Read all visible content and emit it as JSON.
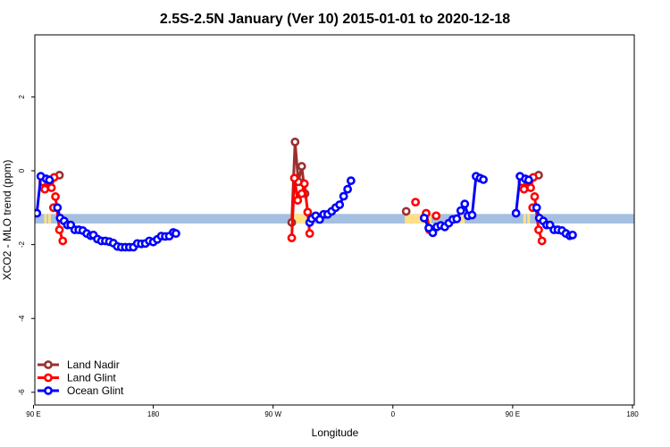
{
  "chart_data": {
    "type": "line",
    "title": "2.5S-2.5N January (Ver 10)   2015-01-01 to 2020-12-18",
    "xlabel": "Longitude",
    "ylabel": "XCO2 - MLO trend (ppm)",
    "xlim": [
      90,
      450
    ],
    "ylim": [
      -6.2,
      3.7
    ],
    "xticks": [
      {
        "v": 90,
        "label": "90 E"
      },
      {
        "v": 180,
        "label": "180"
      },
      {
        "v": 270,
        "label": "90 W"
      },
      {
        "v": 360,
        "label": "0"
      },
      {
        "v": 450,
        "label": "90 E"
      },
      {
        "v": 540,
        "label": "180"
      }
    ],
    "yticks": [
      {
        "v": -6,
        "label": "-6"
      },
      {
        "v": -4,
        "label": "-4"
      },
      {
        "v": -2,
        "label": "-2"
      },
      {
        "v": 0,
        "label": "0"
      },
      {
        "v": 2,
        "label": "2"
      }
    ],
    "band": {
      "y0": -1.43,
      "y1": -1.17,
      "color": "#a5bfe0"
    },
    "land_segments": [
      {
        "x0": 98,
        "x1": 100
      },
      {
        "x0": 101,
        "x1": 103
      },
      {
        "x0": 110,
        "x1": 113
      },
      {
        "x0": 283,
        "x1": 296
      },
      {
        "x0": 369,
        "x1": 389
      },
      {
        "x0": 410,
        "x1": 414
      },
      {
        "x0": 458,
        "x1": 460
      },
      {
        "x0": 461,
        "x1": 463
      },
      {
        "x0": 470,
        "x1": 473
      }
    ],
    "land_color": "#ffe08a",
    "legend_position": "bottom-left",
    "series": [
      {
        "name": "Land Nadir",
        "color": "#9b3030",
        "segments": [
          [
            [
              109.5,
              -0.12
            ]
          ],
          [
            [
              284,
              -1.4
            ],
            [
              286.5,
              0.78
            ],
            [
              289,
              -0.3
            ],
            [
              291.5,
              0.12
            ],
            [
              294,
              -0.62
            ]
          ],
          [
            [
              370,
              -1.1
            ]
          ],
          [
            [
              469.5,
              -0.12
            ]
          ]
        ]
      },
      {
        "name": "Land Glint",
        "color": "#ff0000",
        "segments": [
          [
            [
              97,
              -0.3
            ],
            [
              98.5,
              -0.5
            ],
            [
              101.5,
              -0.3
            ],
            [
              103.5,
              -0.46
            ],
            [
              105.5,
              -0.18
            ]
          ],
          [
            [
              105,
              -1.0
            ]
          ],
          [
            [
              106.5,
              -0.7
            ],
            [
              109.5,
              -1.6
            ],
            [
              112,
              -1.9
            ]
          ],
          [
            [
              284,
              -1.82
            ],
            [
              286,
              -0.2
            ],
            [
              288.5,
              -0.8
            ],
            [
              291.5,
              -0.62
            ],
            [
              293.5,
              -0.35
            ],
            [
              296,
              -1.12
            ],
            [
              297.5,
              -1.7
            ]
          ],
          [
            [
              377,
              -0.85
            ]
          ],
          [
            [
              385,
              -1.15
            ],
            [
              387.5,
              -1.6
            ]
          ],
          [
            [
              392.5,
              -1.22
            ]
          ],
          [
            [
              457,
              -0.3
            ],
            [
              458.5,
              -0.5
            ],
            [
              461.5,
              -0.3
            ],
            [
              463.5,
              -0.46
            ],
            [
              465.5,
              -0.18
            ]
          ],
          [
            [
              465,
              -1.0
            ]
          ],
          [
            [
              466.5,
              -0.7
            ],
            [
              469.5,
              -1.6
            ],
            [
              472,
              -1.9
            ]
          ]
        ]
      },
      {
        "name": "Ocean Glint",
        "color": "#0000ff",
        "segments": [
          [
            [
              92.5,
              -1.15
            ],
            [
              95.5,
              -0.15
            ],
            [
              99.5,
              -0.22
            ],
            [
              102,
              -0.25
            ]
          ],
          [
            [
              108,
              -1.0
            ],
            [
              110,
              -1.28
            ],
            [
              113,
              -1.36
            ],
            [
              115.5,
              -1.47
            ],
            [
              118,
              -1.47
            ],
            [
              121,
              -1.6
            ],
            [
              124,
              -1.6
            ],
            [
              127,
              -1.62
            ],
            [
              130,
              -1.7
            ],
            [
              133,
              -1.76
            ],
            [
              135,
              -1.74
            ],
            [
              138,
              -1.85
            ],
            [
              141,
              -1.9
            ],
            [
              144,
              -1.9
            ],
            [
              147,
              -1.92
            ],
            [
              150,
              -1.96
            ],
            [
              153,
              -2.05
            ],
            [
              156,
              -2.07
            ],
            [
              159,
              -2.07
            ],
            [
              162,
              -2.07
            ],
            [
              165,
              -2.07
            ],
            [
              168,
              -1.97
            ],
            [
              171,
              -1.98
            ],
            [
              174,
              -1.97
            ],
            [
              177,
              -1.9
            ],
            [
              180,
              -1.93
            ],
            [
              183,
              -1.86
            ],
            [
              186,
              -1.77
            ],
            [
              189,
              -1.78
            ],
            [
              192,
              -1.77
            ],
            [
              195,
              -1.67
            ],
            [
              197,
              -1.7
            ]
          ],
          [
            [
              297.5,
              -1.4
            ],
            [
              299,
              -1.3
            ],
            [
              302,
              -1.22
            ],
            [
              305,
              -1.32
            ],
            [
              308,
              -1.18
            ],
            [
              311,
              -1.18
            ],
            [
              314,
              -1.1
            ],
            [
              317,
              -1.0
            ],
            [
              320,
              -0.92
            ],
            [
              323,
              -0.69
            ],
            [
              326,
              -0.5
            ],
            [
              328.5,
              -0.27
            ]
          ],
          [
            [
              383.5,
              -1.28
            ],
            [
              387,
              -1.55
            ],
            [
              390,
              -1.68
            ],
            [
              393,
              -1.52
            ],
            [
              396,
              -1.48
            ],
            [
              399,
              -1.52
            ],
            [
              402,
              -1.42
            ],
            [
              405,
              -1.32
            ],
            [
              408,
              -1.3
            ],
            [
              411,
              -1.08
            ],
            [
              414,
              -0.9
            ],
            [
              416.5,
              -1.22
            ],
            [
              419.5,
              -1.2
            ],
            [
              422.5,
              -0.15
            ],
            [
              425.5,
              -0.2
            ],
            [
              428,
              -0.24
            ]
          ],
          [
            [
              452.5,
              -1.15
            ],
            [
              455.5,
              -0.15
            ],
            [
              459.5,
              -0.22
            ],
            [
              462,
              -0.25
            ]
          ],
          [
            [
              468,
              -1.0
            ],
            [
              470,
              -1.28
            ],
            [
              473,
              -1.36
            ],
            [
              475.5,
              -1.47
            ],
            [
              478,
              -1.47
            ],
            [
              481,
              -1.6
            ],
            [
              484,
              -1.6
            ],
            [
              487,
              -1.62
            ],
            [
              490,
              -1.7
            ],
            [
              493,
              -1.76
            ],
            [
              495,
              -1.74
            ]
          ]
        ]
      }
    ]
  }
}
